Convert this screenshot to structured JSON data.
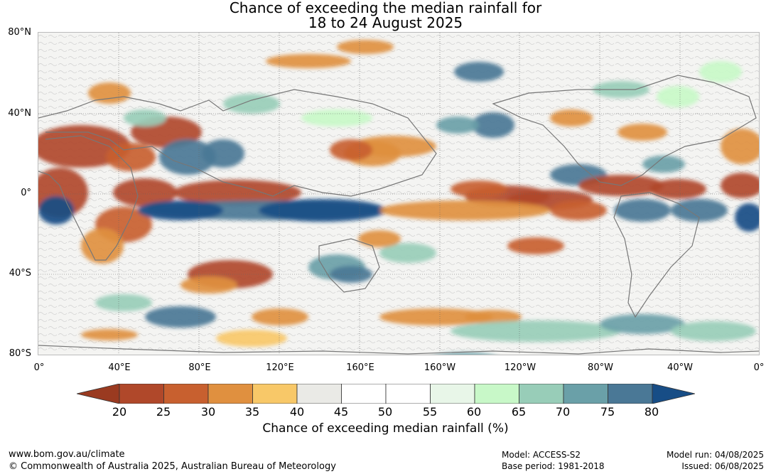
{
  "title": {
    "line1": "Chance of exceeding the median rainfall for",
    "line2": "18 to 24 August 2025"
  },
  "map": {
    "lat_labels": [
      "80°N",
      "40°N",
      "0°",
      "40°S",
      "80°S"
    ],
    "lon_labels": [
      "0°",
      "40°E",
      "80°E",
      "120°E",
      "160°E",
      "160°W",
      "120°W",
      "80°W",
      "40°W",
      "0°"
    ]
  },
  "colorbar": {
    "ticks": [
      "20",
      "25",
      "30",
      "35",
      "40",
      "45",
      "50",
      "55",
      "60",
      "65",
      "70",
      "75",
      "80"
    ],
    "colors": [
      "#9a3a20",
      "#b0482a",
      "#c8602f",
      "#e0903f",
      "#f8c868",
      "#eaeae6",
      "#ffffff",
      "#ffffff",
      "#e8f6e8",
      "#c8f8c8",
      "#98cdb8",
      "#6aa0a8",
      "#4a7896",
      "#174d86"
    ],
    "title": "Chance of exceeding median rainfall (%)"
  },
  "footer": {
    "website": "www.bom.gov.au/climate",
    "copyright": "© Commonwealth of Australia 2025, Australian Bureau of Meteorology",
    "model": "Model: ACCESS-S2",
    "base_period": "Base period: 1981-2018",
    "model_run": "Model run: 04/08/2025",
    "issued": "Issued: 06/08/2025"
  }
}
